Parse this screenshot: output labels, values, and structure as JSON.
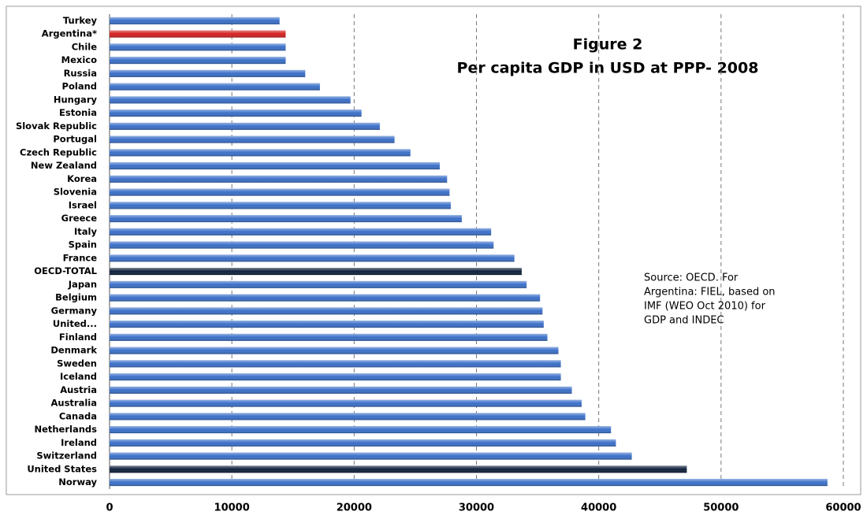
{
  "chart_data": {
    "type": "bar",
    "orientation": "horizontal",
    "title": "Figure 2",
    "subtitle": "Per capita GDP in USD at PPP- 2008",
    "annotation": [
      "Source: OECD. For",
      "Argentina: FIEL, based on",
      "IMF (WEO Oct 2010) for",
      "GDP and INDEC"
    ],
    "categories": [
      "Turkey",
      "Argentina*",
      "Chile",
      "Mexico",
      "Russia",
      "Poland",
      "Hungary",
      "Estonia",
      "Slovak Republic",
      "Portugal",
      "Czech Republic",
      "New Zealand",
      "Korea",
      "Slovenia",
      "Israel",
      "Greece",
      "Italy",
      "Spain",
      "France",
      "OECD-TOTAL",
      "Japan",
      "Belgium",
      "Germany",
      "United...",
      "Finland",
      "Denmark",
      "Sweden",
      "Iceland",
      "Austria",
      "Australia",
      "Canada",
      "Netherlands",
      "Ireland",
      "Switzerland",
      "United States",
      "Norway"
    ],
    "values": [
      13900,
      14400,
      14400,
      14400,
      16000,
      17200,
      19700,
      20600,
      22100,
      23300,
      24600,
      27000,
      27600,
      27800,
      27900,
      28800,
      31200,
      31400,
      33100,
      33700,
      34100,
      35200,
      35400,
      35500,
      35800,
      36700,
      36900,
      36900,
      37800,
      38600,
      38900,
      41000,
      41400,
      42700,
      47200,
      58700
    ],
    "color": "#3a6fc8",
    "highlight_colors": {
      "Argentina*": "#d42020",
      "OECD-TOTAL": "#0d1f3a",
      "United States": "#0d1f3a"
    },
    "xlim": [
      0,
      60000
    ],
    "xticks": [
      0,
      10000,
      20000,
      30000,
      40000,
      50000,
      60000
    ],
    "grid": true
  }
}
